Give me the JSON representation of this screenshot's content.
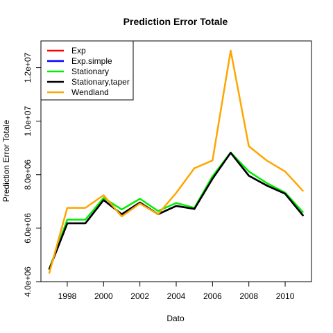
{
  "chart_data": {
    "type": "line",
    "title": "Prediction Error Totale",
    "xlabel": "Dato",
    "ylabel": "Prediction Error Totale",
    "x": [
      1997,
      1998,
      1999,
      2000,
      2001,
      2002,
      2003,
      2004,
      2005,
      2006,
      2007,
      2008,
      2009,
      2010,
      2011
    ],
    "xlim": [
      1996.55,
      2011.45
    ],
    "ylim": [
      4000000,
      13000000
    ],
    "x_ticks": [
      1998,
      2000,
      2002,
      2004,
      2006,
      2008,
      2010
    ],
    "y_ticks": [
      4000000,
      6000000,
      8000000,
      10000000,
      12000000
    ],
    "x_tick_labels": [
      "1998",
      "2000",
      "2002",
      "2004",
      "2006",
      "2008",
      "2010"
    ],
    "y_tick_labels": [
      "4.0e+06",
      "6.0e+06",
      "8.0e+06",
      "1.0e+07",
      "1.2e+07"
    ],
    "grid": false,
    "legend_position": "top-left",
    "series": [
      {
        "name": "Exp",
        "color": "#ff0000",
        "values": [
          4450000,
          6180000,
          6180000,
          7050000,
          6520000,
          6960000,
          6520000,
          6830000,
          6720000,
          7850000,
          8820000,
          7960000,
          7590000,
          7290000,
          6460000
        ]
      },
      {
        "name": "Exp.simple",
        "color": "#0000ff",
        "values": [
          4450000,
          6180000,
          6180000,
          7050000,
          6520000,
          6960000,
          6520000,
          6830000,
          6720000,
          7850000,
          8820000,
          7960000,
          7590000,
          7290000,
          6460000
        ]
      },
      {
        "name": "Stationary",
        "color": "#00ee00",
        "values": [
          4460000,
          6320000,
          6320000,
          7130000,
          6700000,
          7100000,
          6640000,
          6940000,
          6760000,
          7940000,
          8830000,
          8120000,
          7680000,
          7330000,
          6580000
        ]
      },
      {
        "name": "Stationary,taper",
        "color": "#000000",
        "values": [
          4450000,
          6180000,
          6180000,
          7050000,
          6520000,
          6960000,
          6520000,
          6830000,
          6720000,
          7850000,
          8820000,
          7960000,
          7590000,
          7290000,
          6460000
        ]
      },
      {
        "name": "Wendland",
        "color": "#ffa500",
        "values": [
          4300000,
          6760000,
          6760000,
          7230000,
          6440000,
          6920000,
          6520000,
          7320000,
          8240000,
          8530000,
          12640000,
          9060000,
          8520000,
          8120000,
          7380000
        ]
      }
    ]
  }
}
